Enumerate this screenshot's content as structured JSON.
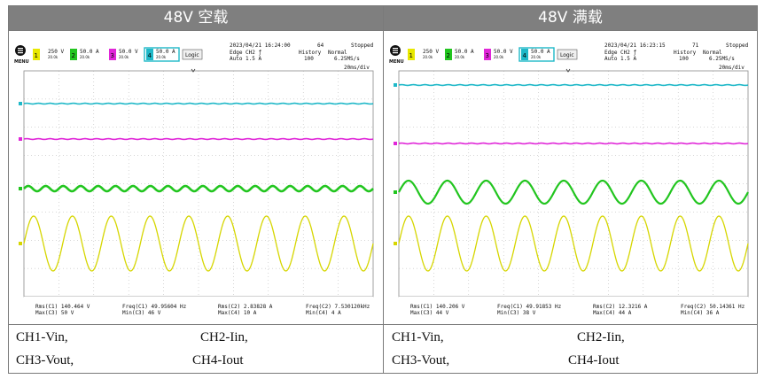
{
  "panels": [
    {
      "title": "48V 空载",
      "scope": {
        "menu": "MENU",
        "ch1": {
          "num": "1",
          "scale": "250 V",
          "bw": "20.0k"
        },
        "ch2": {
          "num": "2",
          "scale": "50.0 A",
          "bw": "20.0k"
        },
        "ch3": {
          "num": "3",
          "scale": "50.0 V",
          "bw": "20.0k"
        },
        "ch4": {
          "num": "4",
          "scale": "50.0 A",
          "bw": "20.0k"
        },
        "logic": "Logic",
        "datetime": "2023/04/21 16:24:00",
        "count": "64",
        "status": "Stopped",
        "trigger1": "Edge CH2 ƒ",
        "trigger2": "Auto 1.5 A",
        "history": "History",
        "history_val": "100",
        "mode": "Normal",
        "rate": "6.25MS/s",
        "timebase": "20ms/div",
        "m1": "Rms(C1)  140.464 V",
        "m2": "Max(C3)  50 V",
        "m3": "Freq(C1)  49.95604 Hz",
        "m4": "Min(C3)  46 V",
        "m5": "Rms(C2)  2.83828 A",
        "m6": "Max(C4)  10 A",
        "m7": "Freq(C2)  7.530120kHz",
        "m8": "Min(C4)  4 A"
      },
      "caption": {
        "ch1": "CH1-Vin,",
        "ch2": "CH2-Iin,",
        "ch3": "CH3-Vout,",
        "ch4": "CH4-Iout"
      }
    },
    {
      "title": "48V 满载",
      "scope": {
        "menu": "MENU",
        "ch1": {
          "num": "1",
          "scale": "250 V",
          "bw": "20.0k"
        },
        "ch2": {
          "num": "2",
          "scale": "50.0 A",
          "bw": "20.0k"
        },
        "ch3": {
          "num": "3",
          "scale": "50.0 V",
          "bw": "20.0k"
        },
        "ch4": {
          "num": "4",
          "scale": "50.0 A",
          "bw": "20.0k"
        },
        "logic": "Logic",
        "datetime": "2023/04/21 16:23:15",
        "count": "71",
        "status": "Stopped",
        "trigger1": "Edge CH2 ƒ",
        "trigger2": "Auto 1.5 A",
        "history": "History",
        "history_val": "100",
        "mode": "Normal",
        "rate": "6.25MS/s",
        "timebase": "20ms/div",
        "m1": "Rms(C1)  140.206 V",
        "m2": "Max(C3)  44 V",
        "m3": "Freq(C1)  49.91853 Hz",
        "m4": "Min(C3)  38 V",
        "m5": "Rms(C2)  12.3216 A",
        "m6": "Max(C4)  44 A",
        "m7": "Freq(C2)  50.14361 Hz",
        "m8": "Min(C4)  36 A"
      },
      "caption": {
        "ch1": "CH1-Vin,",
        "ch2": "CH2-Iin,",
        "ch3": "CH3-Vout,",
        "ch4": "CH4-Iout"
      }
    }
  ],
  "colors": {
    "ch1": "#d6d600",
    "ch2": "#22c51f",
    "ch3": "#e026d8",
    "ch4": "#1fb8c8",
    "grid": "#9a9a9a",
    "header_bg": "#7f7f7f"
  },
  "waves": [
    {
      "ch1_cycles": 9,
      "ch2_cycles": 20,
      "ch2_amp": 0.12,
      "ch3_amp": 0.0,
      "ch4_amp": 0.0
    },
    {
      "ch1_cycles": 9,
      "ch2_cycles": 9,
      "ch2_amp": 0.55,
      "ch3_amp": 0.0,
      "ch4_amp": 0.0
    }
  ]
}
